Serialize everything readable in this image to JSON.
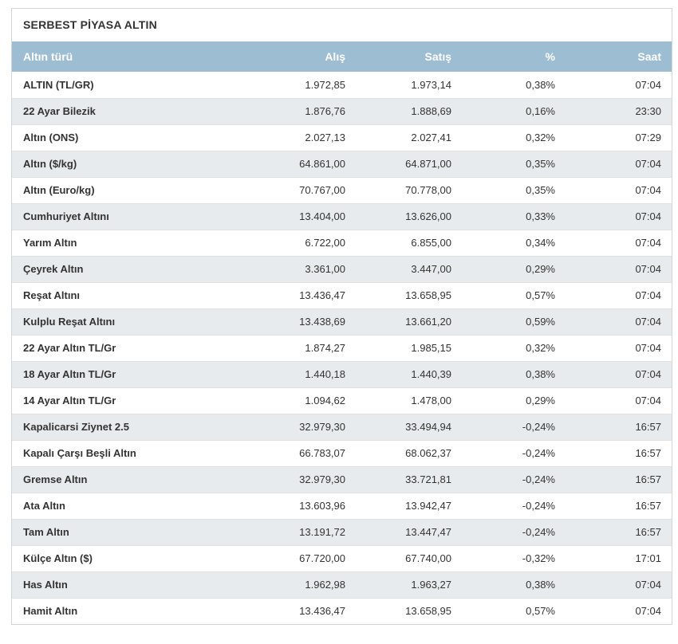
{
  "panel": {
    "title": "SERBEST PİYASA ALTIN"
  },
  "colors": {
    "header_bg": "#9dbdd2",
    "header_text": "#ffffff",
    "row_alt_bg": "#e8ebed",
    "body_text": "#333333",
    "panel_border": "#d2d6d9"
  },
  "table": {
    "columns": [
      "Altın türü",
      "Alış",
      "Satış",
      "%",
      "Saat"
    ],
    "rows": [
      {
        "name": "ALTIN (TL/GR)",
        "alis": "1.972,85",
        "satis": "1.973,14",
        "pct": "0,38%",
        "saat": "07:04"
      },
      {
        "name": "22 Ayar Bilezik",
        "alis": "1.876,76",
        "satis": "1.888,69",
        "pct": "0,16%",
        "saat": "23:30"
      },
      {
        "name": "Altın (ONS)",
        "alis": "2.027,13",
        "satis": "2.027,41",
        "pct": "0,32%",
        "saat": "07:29"
      },
      {
        "name": "Altın ($/kg)",
        "alis": "64.861,00",
        "satis": "64.871,00",
        "pct": "0,35%",
        "saat": "07:04"
      },
      {
        "name": "Altın (Euro/kg)",
        "alis": "70.767,00",
        "satis": "70.778,00",
        "pct": "0,35%",
        "saat": "07:04"
      },
      {
        "name": "Cumhuriyet Altını",
        "alis": "13.404,00",
        "satis": "13.626,00",
        "pct": "0,33%",
        "saat": "07:04"
      },
      {
        "name": "Yarım Altın",
        "alis": "6.722,00",
        "satis": "6.855,00",
        "pct": "0,34%",
        "saat": "07:04"
      },
      {
        "name": "Çeyrek Altın",
        "alis": "3.361,00",
        "satis": "3.447,00",
        "pct": "0,29%",
        "saat": "07:04"
      },
      {
        "name": "Reşat Altını",
        "alis": "13.436,47",
        "satis": "13.658,95",
        "pct": "0,57%",
        "saat": "07:04"
      },
      {
        "name": "Kulplu Reşat Altını",
        "alis": "13.438,69",
        "satis": "13.661,20",
        "pct": "0,59%",
        "saat": "07:04"
      },
      {
        "name": "22 Ayar Altın TL/Gr",
        "alis": "1.874,27",
        "satis": "1.985,15",
        "pct": "0,32%",
        "saat": "07:04"
      },
      {
        "name": "18 Ayar Altın TL/Gr",
        "alis": "1.440,18",
        "satis": "1.440,39",
        "pct": "0,38%",
        "saat": "07:04"
      },
      {
        "name": "14 Ayar Altın TL/Gr",
        "alis": "1.094,62",
        "satis": "1.478,00",
        "pct": "0,29%",
        "saat": "07:04"
      },
      {
        "name": "Kapalicarsi Ziynet 2.5",
        "alis": "32.979,30",
        "satis": "33.494,94",
        "pct": "-0,24%",
        "saat": "16:57"
      },
      {
        "name": "Kapalı Çarşı Beşli Altın",
        "alis": "66.783,07",
        "satis": "68.062,37",
        "pct": "-0,24%",
        "saat": "16:57"
      },
      {
        "name": "Gremse Altın",
        "alis": "32.979,30",
        "satis": "33.721,81",
        "pct": "-0,24%",
        "saat": "16:57"
      },
      {
        "name": "Ata Altın",
        "alis": "13.603,96",
        "satis": "13.942,47",
        "pct": "-0,24%",
        "saat": "16:57"
      },
      {
        "name": "Tam Altın",
        "alis": "13.191,72",
        "satis": "13.447,47",
        "pct": "-0,24%",
        "saat": "16:57"
      },
      {
        "name": "Külçe Altın ($)",
        "alis": "67.720,00",
        "satis": "67.740,00",
        "pct": "-0,32%",
        "saat": "17:01"
      },
      {
        "name": "Has Altın",
        "alis": "1.962,98",
        "satis": "1.963,27",
        "pct": "0,38%",
        "saat": "07:04"
      },
      {
        "name": "Hamit Altın",
        "alis": "13.436,47",
        "satis": "13.658,95",
        "pct": "0,57%",
        "saat": "07:04"
      }
    ]
  }
}
